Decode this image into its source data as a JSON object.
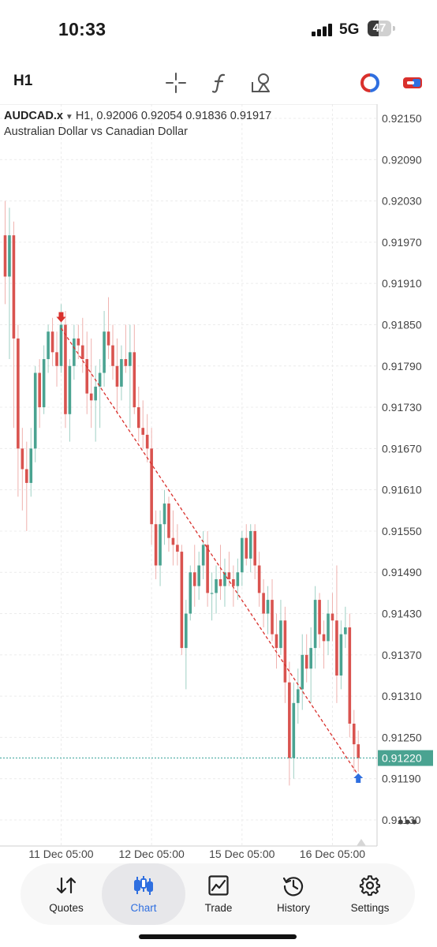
{
  "status_bar": {
    "time": "10:33",
    "network": "5G",
    "battery": "47",
    "battery_level": 0.47
  },
  "toolbar": {
    "timeframe": "H1",
    "icons": [
      "crosshair-icon",
      "function-icon",
      "objects-icon",
      "one-click-trading-icon",
      "chart-toggle-icon"
    ]
  },
  "chart": {
    "symbol": "AUDCAD.x",
    "ohlc_text": "H1, 0.92006 0.92054 0.91836 0.91917",
    "description": "Australian Dollar vs Canadian Dollar",
    "price_labels": [
      "0.92150",
      "0.92090",
      "0.92030",
      "0.91970",
      "0.91910",
      "0.91850",
      "0.91790",
      "0.91730",
      "0.91670",
      "0.91610",
      "0.91550",
      "0.91490",
      "0.91430",
      "0.91370",
      "0.91310",
      "0.91250",
      "0.91190",
      "0.91130"
    ],
    "current_price": "0.91220",
    "time_labels": [
      "11 Dec 05:00",
      "12 Dec 05:00",
      "15 Dec 05:00",
      "16 Dec 05:00"
    ],
    "colors": {
      "bull": "#4aa391",
      "bear": "#d9534f",
      "trendline": "#d9302c",
      "current_line": "#3aa39a",
      "sell_arrow": "#d9302c",
      "buy_arrow": "#2f6fe0"
    }
  },
  "chart_data": {
    "type": "candlestick",
    "ylim": [
      0.911,
      0.9218
    ],
    "candles": [
      {
        "o": 0.9198,
        "h": 0.9203,
        "l": 0.9188,
        "c": 0.9192
      },
      {
        "o": 0.9192,
        "h": 0.9202,
        "l": 0.918,
        "c": 0.9198
      },
      {
        "o": 0.9198,
        "h": 0.92,
        "l": 0.917,
        "c": 0.9183
      },
      {
        "o": 0.9183,
        "h": 0.9185,
        "l": 0.916,
        "c": 0.9167
      },
      {
        "o": 0.9167,
        "h": 0.917,
        "l": 0.9158,
        "c": 0.9164
      },
      {
        "o": 0.9164,
        "h": 0.9168,
        "l": 0.9155,
        "c": 0.9162
      },
      {
        "o": 0.9162,
        "h": 0.917,
        "l": 0.916,
        "c": 0.9167
      },
      {
        "o": 0.9167,
        "h": 0.9179,
        "l": 0.9165,
        "c": 0.9178
      },
      {
        "o": 0.9178,
        "h": 0.918,
        "l": 0.917,
        "c": 0.9173
      },
      {
        "o": 0.9173,
        "h": 0.9182,
        "l": 0.9172,
        "c": 0.918
      },
      {
        "o": 0.918,
        "h": 0.9185,
        "l": 0.9178,
        "c": 0.9184
      },
      {
        "o": 0.9184,
        "h": 0.9186,
        "l": 0.9179,
        "c": 0.9181
      },
      {
        "o": 0.9181,
        "h": 0.9184,
        "l": 0.9176,
        "c": 0.9179
      },
      {
        "o": 0.9179,
        "h": 0.9188,
        "l": 0.9178,
        "c": 0.9185
      },
      {
        "o": 0.9185,
        "h": 0.9187,
        "l": 0.917,
        "c": 0.9172
      },
      {
        "o": 0.9172,
        "h": 0.918,
        "l": 0.9168,
        "c": 0.9179
      },
      {
        "o": 0.9179,
        "h": 0.9185,
        "l": 0.9177,
        "c": 0.9183
      },
      {
        "o": 0.9183,
        "h": 0.9185,
        "l": 0.918,
        "c": 0.9182
      },
      {
        "o": 0.9182,
        "h": 0.9186,
        "l": 0.9178,
        "c": 0.918
      },
      {
        "o": 0.918,
        "h": 0.9184,
        "l": 0.9172,
        "c": 0.9175
      },
      {
        "o": 0.9175,
        "h": 0.9183,
        "l": 0.917,
        "c": 0.9174
      },
      {
        "o": 0.9174,
        "h": 0.9179,
        "l": 0.9168,
        "c": 0.9176
      },
      {
        "o": 0.9176,
        "h": 0.918,
        "l": 0.917,
        "c": 0.9178
      },
      {
        "o": 0.9178,
        "h": 0.9187,
        "l": 0.9176,
        "c": 0.9184
      },
      {
        "o": 0.9184,
        "h": 0.9189,
        "l": 0.918,
        "c": 0.9182
      },
      {
        "o": 0.9182,
        "h": 0.9185,
        "l": 0.9177,
        "c": 0.9179
      },
      {
        "o": 0.9179,
        "h": 0.9183,
        "l": 0.9172,
        "c": 0.9176
      },
      {
        "o": 0.9176,
        "h": 0.9182,
        "l": 0.9174,
        "c": 0.918
      },
      {
        "o": 0.918,
        "h": 0.9185,
        "l": 0.9178,
        "c": 0.9179
      },
      {
        "o": 0.9179,
        "h": 0.9185,
        "l": 0.917,
        "c": 0.9181
      },
      {
        "o": 0.9181,
        "h": 0.9185,
        "l": 0.9172,
        "c": 0.9173
      },
      {
        "o": 0.9173,
        "h": 0.9176,
        "l": 0.9168,
        "c": 0.917
      },
      {
        "o": 0.917,
        "h": 0.9174,
        "l": 0.9167,
        "c": 0.9169
      },
      {
        "o": 0.9169,
        "h": 0.9172,
        "l": 0.9165,
        "c": 0.9167
      },
      {
        "o": 0.9167,
        "h": 0.917,
        "l": 0.9153,
        "c": 0.9156
      },
      {
        "o": 0.9156,
        "h": 0.9158,
        "l": 0.9148,
        "c": 0.915
      },
      {
        "o": 0.915,
        "h": 0.9158,
        "l": 0.9147,
        "c": 0.9156
      },
      {
        "o": 0.9156,
        "h": 0.9161,
        "l": 0.9153,
        "c": 0.9159
      },
      {
        "o": 0.9159,
        "h": 0.916,
        "l": 0.9152,
        "c": 0.9154
      },
      {
        "o": 0.9154,
        "h": 0.9158,
        "l": 0.915,
        "c": 0.9153
      },
      {
        "o": 0.9153,
        "h": 0.9156,
        "l": 0.915,
        "c": 0.9152
      },
      {
        "o": 0.9152,
        "h": 0.9153,
        "l": 0.9137,
        "c": 0.9138
      },
      {
        "o": 0.9138,
        "h": 0.9145,
        "l": 0.9132,
        "c": 0.9143
      },
      {
        "o": 0.9143,
        "h": 0.915,
        "l": 0.9142,
        "c": 0.9149
      },
      {
        "o": 0.9149,
        "h": 0.9153,
        "l": 0.9144,
        "c": 0.9147
      },
      {
        "o": 0.9147,
        "h": 0.9152,
        "l": 0.9145,
        "c": 0.915
      },
      {
        "o": 0.915,
        "h": 0.9155,
        "l": 0.9148,
        "c": 0.9153
      },
      {
        "o": 0.9153,
        "h": 0.9155,
        "l": 0.9144,
        "c": 0.9146
      },
      {
        "o": 0.9146,
        "h": 0.9149,
        "l": 0.9142,
        "c": 0.9146
      },
      {
        "o": 0.9146,
        "h": 0.915,
        "l": 0.9143,
        "c": 0.9148
      },
      {
        "o": 0.9148,
        "h": 0.9153,
        "l": 0.9145,
        "c": 0.9147
      },
      {
        "o": 0.9147,
        "h": 0.9151,
        "l": 0.9144,
        "c": 0.9149
      },
      {
        "o": 0.9149,
        "h": 0.9152,
        "l": 0.9147,
        "c": 0.9148
      },
      {
        "o": 0.9148,
        "h": 0.915,
        "l": 0.9144,
        "c": 0.9147
      },
      {
        "o": 0.9147,
        "h": 0.9151,
        "l": 0.9145,
        "c": 0.9149
      },
      {
        "o": 0.9149,
        "h": 0.9155,
        "l": 0.9147,
        "c": 0.9154
      },
      {
        "o": 0.9154,
        "h": 0.9156,
        "l": 0.915,
        "c": 0.9151
      },
      {
        "o": 0.9151,
        "h": 0.9156,
        "l": 0.9149,
        "c": 0.9155
      },
      {
        "o": 0.9155,
        "h": 0.9156,
        "l": 0.9148,
        "c": 0.915
      },
      {
        "o": 0.915,
        "h": 0.9152,
        "l": 0.9144,
        "c": 0.9146
      },
      {
        "o": 0.9146,
        "h": 0.9148,
        "l": 0.9141,
        "c": 0.9143
      },
      {
        "o": 0.9143,
        "h": 0.9147,
        "l": 0.914,
        "c": 0.9145
      },
      {
        "o": 0.9145,
        "h": 0.9148,
        "l": 0.9139,
        "c": 0.914
      },
      {
        "o": 0.914,
        "h": 0.9143,
        "l": 0.9135,
        "c": 0.9138
      },
      {
        "o": 0.9138,
        "h": 0.9145,
        "l": 0.9137,
        "c": 0.9142
      },
      {
        "o": 0.9142,
        "h": 0.9144,
        "l": 0.913,
        "c": 0.9133
      },
      {
        "o": 0.9133,
        "h": 0.9136,
        "l": 0.9118,
        "c": 0.9122
      },
      {
        "o": 0.9122,
        "h": 0.9133,
        "l": 0.9119,
        "c": 0.913
      },
      {
        "o": 0.913,
        "h": 0.9135,
        "l": 0.9127,
        "c": 0.9132
      },
      {
        "o": 0.9132,
        "h": 0.914,
        "l": 0.9129,
        "c": 0.9137
      },
      {
        "o": 0.9137,
        "h": 0.914,
        "l": 0.9133,
        "c": 0.9135
      },
      {
        "o": 0.9135,
        "h": 0.9141,
        "l": 0.913,
        "c": 0.9138
      },
      {
        "o": 0.9138,
        "h": 0.9147,
        "l": 0.9135,
        "c": 0.9145
      },
      {
        "o": 0.9145,
        "h": 0.9146,
        "l": 0.9138,
        "c": 0.914
      },
      {
        "o": 0.914,
        "h": 0.9142,
        "l": 0.9135,
        "c": 0.9139
      },
      {
        "o": 0.9139,
        "h": 0.9145,
        "l": 0.9137,
        "c": 0.9143
      },
      {
        "o": 0.9143,
        "h": 0.9146,
        "l": 0.9139,
        "c": 0.9142
      },
      {
        "o": 0.9142,
        "h": 0.915,
        "l": 0.913,
        "c": 0.9134
      },
      {
        "o": 0.9134,
        "h": 0.9142,
        "l": 0.9132,
        "c": 0.914
      },
      {
        "o": 0.914,
        "h": 0.9144,
        "l": 0.9138,
        "c": 0.9141
      },
      {
        "o": 0.9141,
        "h": 0.9143,
        "l": 0.9125,
        "c": 0.9127
      },
      {
        "o": 0.9127,
        "h": 0.9129,
        "l": 0.912,
        "c": 0.9124
      },
      {
        "o": 0.9124,
        "h": 0.9126,
        "l": 0.912,
        "c": 0.9122
      }
    ],
    "trendline": {
      "start_candle": 13,
      "start_price": 0.91845,
      "end_candle": 82,
      "end_price": 0.91195
    },
    "sell_arrow": {
      "candle": 13,
      "price": 0.9185
    },
    "buy_arrow": {
      "candle": 82,
      "price": 0.912
    },
    "current_price": 0.9122,
    "time_ticks": [
      {
        "candle": 13,
        "label": "11 Dec 05:00"
      },
      {
        "candle": 34,
        "label": "12 Dec 05:00"
      },
      {
        "candle": 55,
        "label": "15 Dec 05:00"
      },
      {
        "candle": 76,
        "label": "16 Dec 05:00"
      }
    ]
  },
  "tabs": [
    {
      "label": "Quotes",
      "icon": "sort-arrows-icon"
    },
    {
      "label": "Chart",
      "icon": "candles-icon"
    },
    {
      "label": "Trade",
      "icon": "trade-chart-icon"
    },
    {
      "label": "History",
      "icon": "history-icon"
    },
    {
      "label": "Settings",
      "icon": "gear-icon"
    }
  ],
  "active_tab": "Chart"
}
